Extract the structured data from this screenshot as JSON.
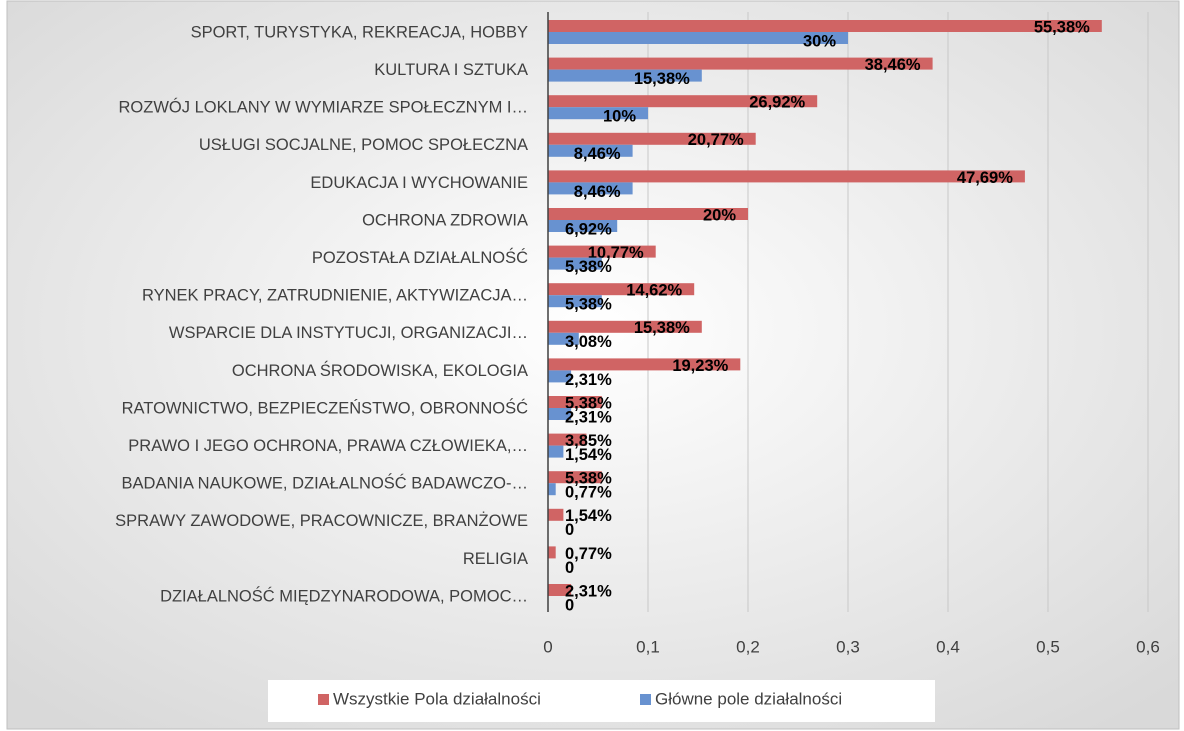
{
  "chart_data": {
    "type": "bar",
    "orientation": "horizontal",
    "categories": [
      "SPORT, TURYSTYKA, REKREACJA, HOBBY",
      "KULTURA I SZTUKA",
      "ROZWÓJ LOKLANY W WYMIARZE SPOŁECZNYM I…",
      "USŁUGI SOCJALNE, POMOC SPOŁECZNA",
      "EDUKACJA I WYCHOWANIE",
      "OCHRONA ZDROWIA",
      "POZOSTAŁA DZIAŁALNOŚĆ",
      "RYNEK PRACY, ZATRUDNIENIE, AKTYWIZACJA…",
      "WSPARCIE DLA INSTYTUCJI, ORGANIZACJI…",
      "OCHRONA ŚRODOWISKA, EKOLOGIA",
      "RATOWNICTWO, BEZPIECZEŃSTWO, OBRONNOŚĆ",
      "PRAWO I JEGO OCHRONA, PRAWA CZŁOWIEKA,…",
      "BADANIA NAUKOWE, DZIAŁALNOŚĆ BADAWCZO-…",
      "SPRAWY ZAWODOWE, PRACOWNICZE, BRANŻOWE",
      "RELIGIA",
      "DZIAŁALNOŚĆ MIĘDZYNARODOWA, POMOC…"
    ],
    "series": [
      {
        "name": "Wszystkie Pola działalności",
        "color": "#d06464",
        "values": [
          0.5538,
          0.3846,
          0.2692,
          0.2077,
          0.4769,
          0.2,
          0.1077,
          0.1462,
          0.1538,
          0.1923,
          0.0538,
          0.0385,
          0.0538,
          0.0154,
          0.0077,
          0.0231
        ],
        "value_labels": [
          "55,38%",
          "38,46%",
          "26,92%",
          "20,77%",
          "47,69%",
          "20%",
          "10,77%",
          "14,62%",
          "15,38%",
          "19,23%",
          "5,38%",
          "3,85%",
          "5,38%",
          "1,54%",
          "0,77%",
          "2,31%"
        ]
      },
      {
        "name": "Główne pole działalności",
        "color": "#6892d0",
        "values": [
          0.3,
          0.1538,
          0.1,
          0.0846,
          0.0846,
          0.0692,
          0.0538,
          0.0538,
          0.0308,
          0.0231,
          0.0231,
          0.0154,
          0.0077,
          0,
          0,
          0
        ],
        "value_labels": [
          "30%",
          "15,38%",
          "10%",
          "8,46%",
          "8,46%",
          "6,92%",
          "5,38%",
          "5,38%",
          "3,08%",
          "2,31%",
          "2,31%",
          "1,54%",
          "0,77%",
          "0",
          "0",
          "0"
        ]
      }
    ],
    "xlim": [
      0,
      0.6
    ],
    "xticks": [
      0,
      {
        "value": 0.1,
        "label": "0,1"
      },
      {
        "value": 0.2,
        "label": "0,2"
      },
      {
        "value": 0.3,
        "label": "0,3"
      },
      {
        "value": 0.4,
        "label": "0,4"
      },
      {
        "value": 0.5,
        "label": "0,5"
      },
      {
        "value": 0.6,
        "label": "0,6"
      }
    ],
    "grid": true,
    "legend": "bottom"
  }
}
